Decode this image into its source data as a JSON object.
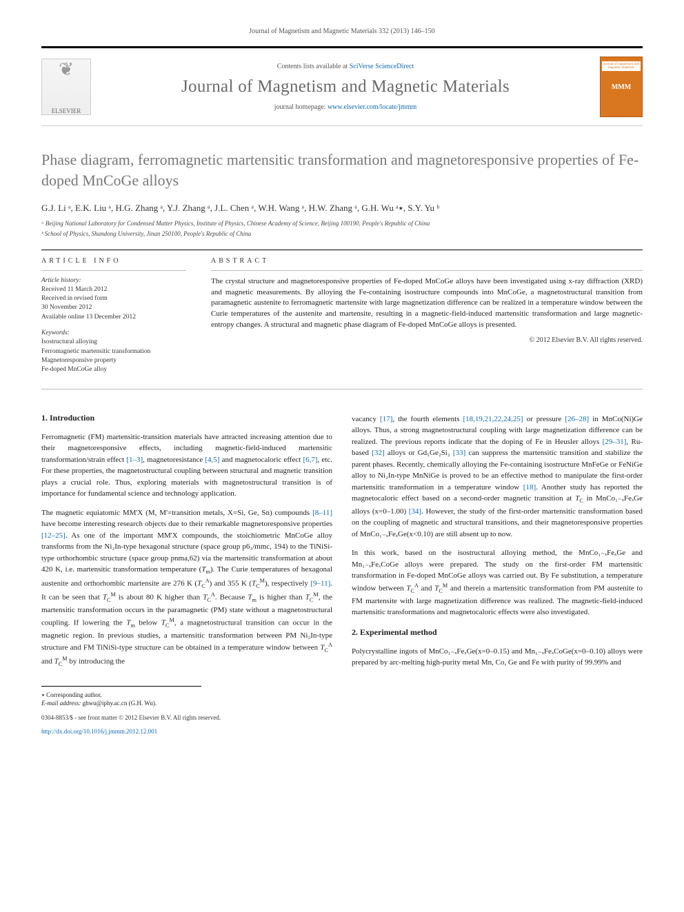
{
  "header": {
    "citation": "Journal of Magnetism and Magnetic Materials 332 (2013) 146–150",
    "contents_prefix": "Contents lists available at ",
    "contents_link": "SciVerse ScienceDirect",
    "journal_title": "Journal of Magnetism and Magnetic Materials",
    "homepage_prefix": "journal homepage: ",
    "homepage_link": "www.elsevier.com/locate/jmmm",
    "publisher_name": "ELSEVIER",
    "cover_top": "journal of magnetism and magnetic materials",
    "cover_side": "MMM"
  },
  "article": {
    "title": "Phase diagram, ferromagnetic martensitic transformation and magnetoresponsive properties of Fe-doped MnCoGe alloys",
    "authors_html": "G.J. Li ᵃ, E.K. Liu ᵃ, H.G. Zhang ᵃ, Y.J. Zhang ᵃ, J.L. Chen ᵃ, W.H. Wang ᵃ, H.W. Zhang ᵃ, G.H. Wu ᵃ٭, S.Y. Yu ᵇ",
    "affiliations": [
      "ᵃ Beijing National Laboratory for Condensed Matter Physics, Institute of Physics, Chinese Academy of Science, Beijing 100190, People's Republic of China",
      "ᵇ School of Physics, Shandong University, Jinan 250100, People's Republic of China"
    ]
  },
  "info": {
    "label": "ARTICLE INFO",
    "history_label": "Article history:",
    "received": "Received 11 March 2012",
    "revised": "Received in revised form",
    "revised_date": "30 November 2012",
    "online": "Available online 13 December 2012",
    "keywords_label": "Keywords:",
    "keywords": [
      "Isostructural alloying",
      "Ferromagnetic martensitic transformation",
      "Magnetoresponsive property",
      "Fe-doped MnCoGe alloy"
    ]
  },
  "abstract": {
    "label": "ABSTRACT",
    "text": "The crystal structure and magnetoresponsive properties of Fe-doped MnCoGe alloys have been investigated using x-ray diffraction (XRD) and magnetic measurements. By alloying the Fe-containing isostructure compounds into MnCoGe, a magnetostructural transition from paramagnetic austenite to ferromagnetic martensite with large magnetization difference can be realized in a temperature window between the Curie temperatures of the austenite and martensite, resulting in a magnetic-field-induced martensitic transformation and large magnetic-entropy changes. A structural and magnetic phase diagram of Fe-doped MnCoGe alloys is presented.",
    "copyright": "© 2012 Elsevier B.V. All rights reserved."
  },
  "body": {
    "section1_heading": "1.  Introduction",
    "p1": "Ferromagnetic (FM) martensitic-transition materials have attracted increasing attention due to their magnetoresponsive effects, including magnetic-field-induced martensitic transformation/strain effect [1–3], magnetoresistance [4,5] and magnetocaloric effect [6,7], etc. For these properties, the magnetostructural coupling between structural and magnetic transition plays a crucial role. Thus, exploring materials with magnetostructural transition is of importance for fundamental science and technology application.",
    "p2": "The magnetic equiatomic MM'X (M, M'=transition metals, X=Si, Ge, Sn) compounds [8–11] have become interesting research objects due to their remarkable magnetoresponsive properties [12–25]. As one of the important MM'X compounds, the stoichiometric MnCoGe alloy transforms from the Ni₂In-type hexagonal structure (space group p6₃/mmc, 194) to the TiNiSi-type orthorhombic structure (space group pnma,62) via the martensitic transformation at about 420 K, i.e. martensitic transformation temperature (Tₘ). The Curie temperatures of hexagonal austenite and orthorhombic martensite are 276 K (T_C^A) and 355 K (T_C^M), respectively [9–11]. It can be seen that T_C^M is about 80 K higher than T_C^A. Because Tₘ is higher than T_C^M, the martensitic transformation occurs in the paramagnetic (PM) state without a magnetostructural coupling. If lowering the Tₘ below T_C^M, a magnetostructural transition can occur in the magnetic region. In previous studies, a martensitic transformation between PM Ni₂In-type structure and FM TiNiSi-type structure can be obtained in a temperature window between T_C^A and T_C^M by introducing the",
    "p3": "vacancy [17], the fourth elements [18,19,21,22,24,25] or pressure [26–28] in MnCo(Ni)Ge alloys. Thus, a strong magnetostructural coupling with large magnetization difference can be realized. The previous reports indicate that the doping of Fe in Heusler alloys [29–31], Ru-based [32] alloys or Gd₅Ge₂Si₂ [33] can suppress the martensitic transition and stabilize the parent phases. Recently, chemically alloying the Fe-containing isostructure MnFeGe or FeNiGe alloy to Ni₂In-type MnNiGe is proved to be an effective method to manipulate the first-order martensitic transformation in a temperature window [18]. Another study has reported the magnetocaloric effect based on a second-order magnetic transition at T_C in MnCo₁₋ₓFeₓGe alloys (x=0–1.00) [34]. However, the study of the first-order martensitic transformation based on the coupling of magnetic and structural transitions, and their magnetoresponsive properties of MnCo₁₋ₓFeₓGe(x<0.10) are still absent up to now.",
    "p4": "In this work, based on the isostructural alloying method, the MnCo₁₋ₓFeₓGe and Mn₁₋ₓFeₓCoGe alloys were prepared. The study on the first-order FM martensitic transformation in Fe-doped MnCoGe alloys was carried out. By Fe substitution, a temperature window between T_C^A and T_C^M and therein a martensitic transformation from PM austenite to FM martensite with large magnetization difference was realized. The magnetic-field-induced martensitic transformations and magnetocaloric effects were also investigated.",
    "section2_heading": "2.  Experimental method",
    "p5": "Polycrystalline ingots of MnCo₁₋ₓFeₓGe(x=0–0.15) and Mn₁₋ₓFeₓCoGe(x=0–0.10) alloys were prepared by arc-melting high-purity metal Mn, Co, Ge and Fe with purity of 99.99% and"
  },
  "footer": {
    "corr_label": "٭ Corresponding author.",
    "email_label": "E-mail address:",
    "email": "ghwu@iphy.ac.cn (G.H. Wu).",
    "issn_line": "0304-8853/$ - see front matter © 2012 Elsevier B.V. All rights reserved.",
    "doi_line": "http://dx.doi.org/10.1016/j.jmmm.2012.12.001"
  },
  "colors": {
    "link": "#1169b2",
    "title_gray": "#787878",
    "orange": "#d97720"
  }
}
